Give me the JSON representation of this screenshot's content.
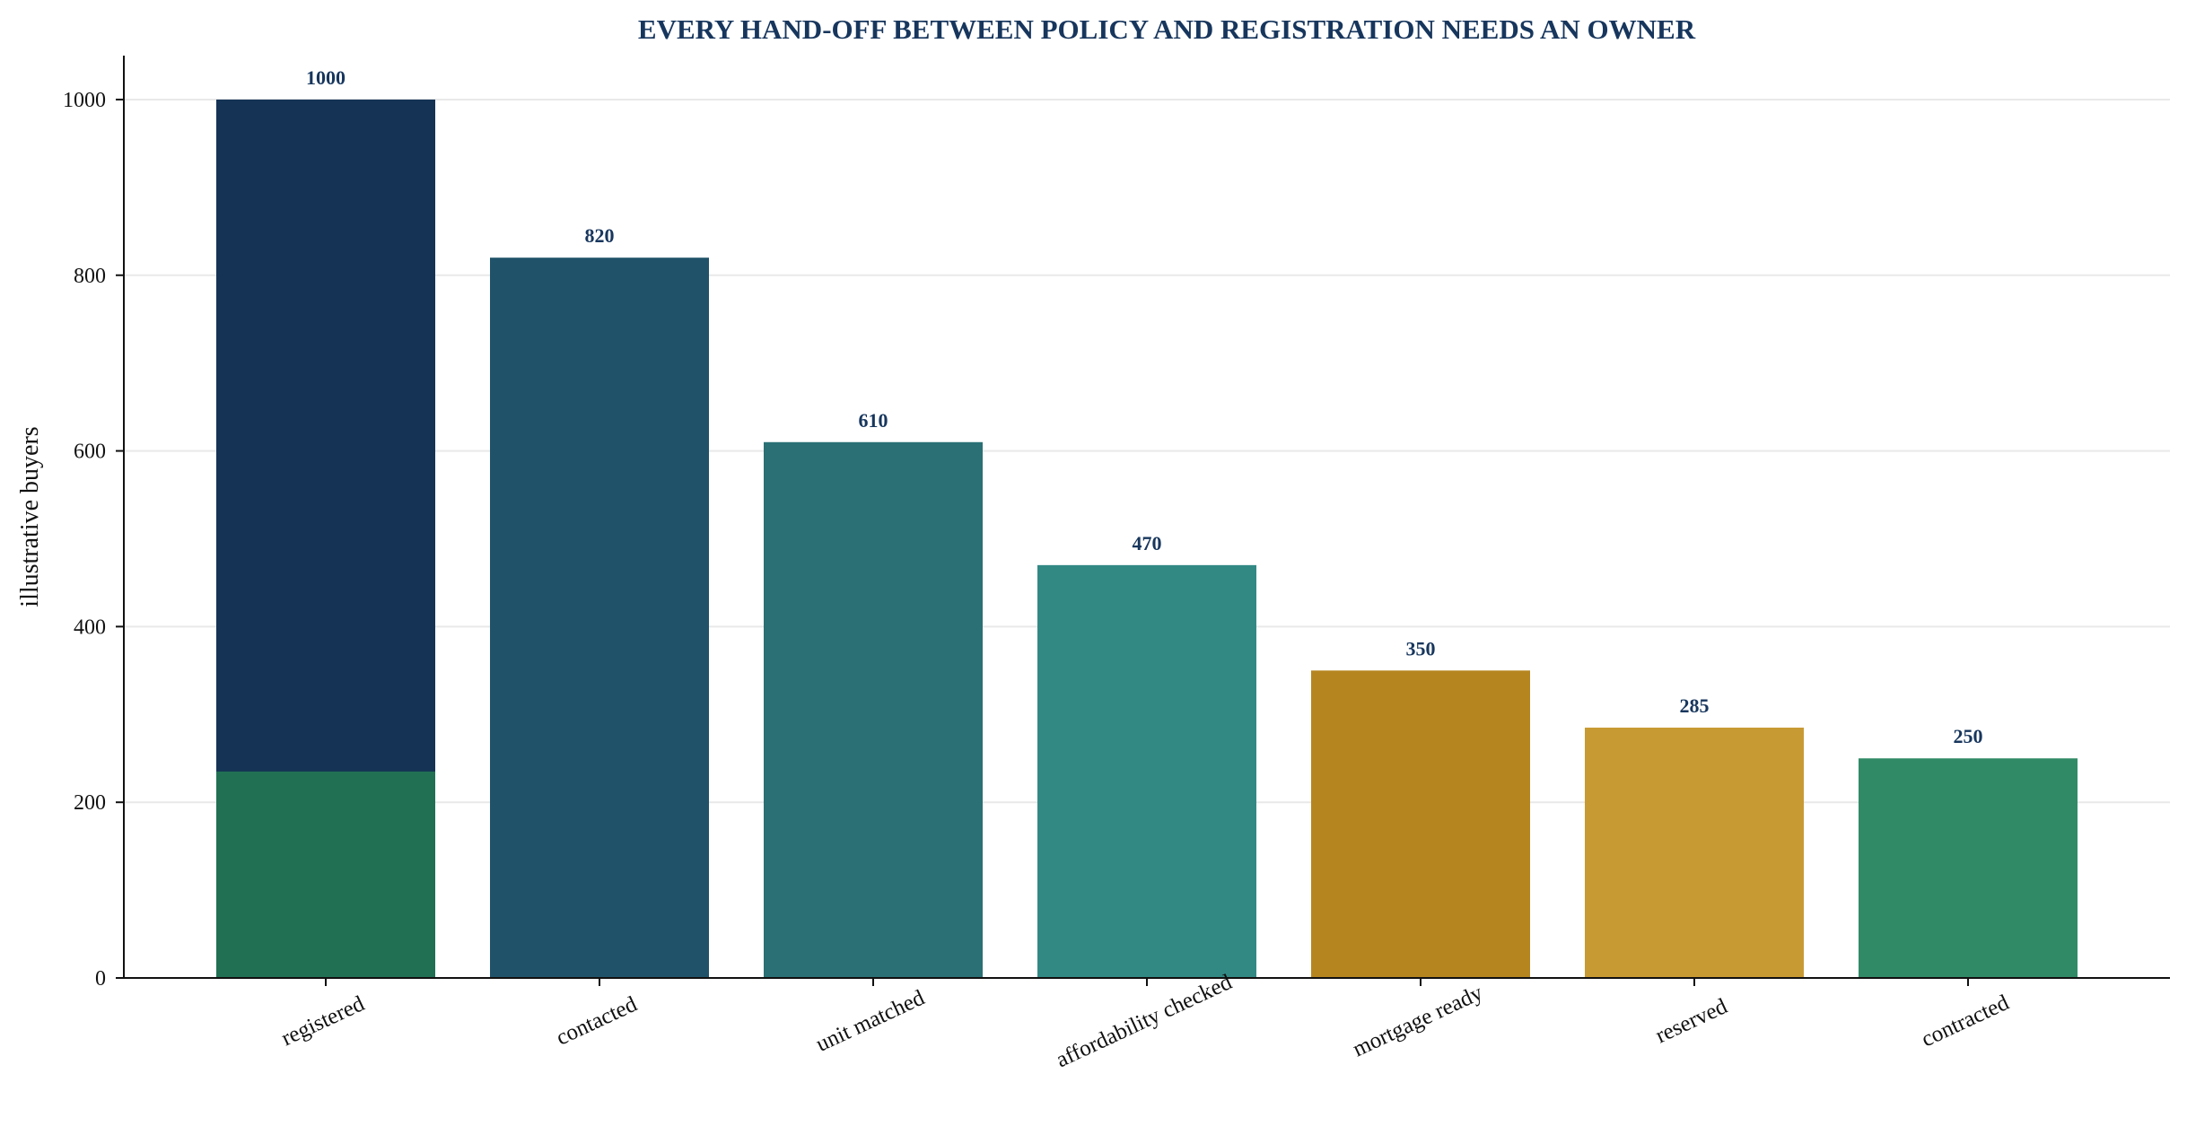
{
  "chart_data": {
    "type": "bar",
    "title": "EVERY HAND-OFF BETWEEN POLICY AND REGISTRATION NEEDS AN OWNER",
    "xlabel": "",
    "ylabel": "illustrative buyers",
    "categories": [
      "registered",
      "contacted",
      "unit matched",
      "affordability checked",
      "mortgage ready",
      "reserved",
      "contracted"
    ],
    "values": [
      1000,
      820,
      610,
      470,
      350,
      285,
      250
    ],
    "colors": [
      "#153355",
      "#20536a",
      "#2a7075",
      "#328984",
      "#b58520",
      "#c89a33",
      "#318a66"
    ],
    "overlay": {
      "category": "registered",
      "value": 235,
      "color": "#217054"
    },
    "ylim": [
      0,
      1050
    ],
    "yticks": [
      0,
      200,
      400,
      600,
      800,
      1000
    ],
    "grid": "horizontal",
    "legend": "none"
  }
}
